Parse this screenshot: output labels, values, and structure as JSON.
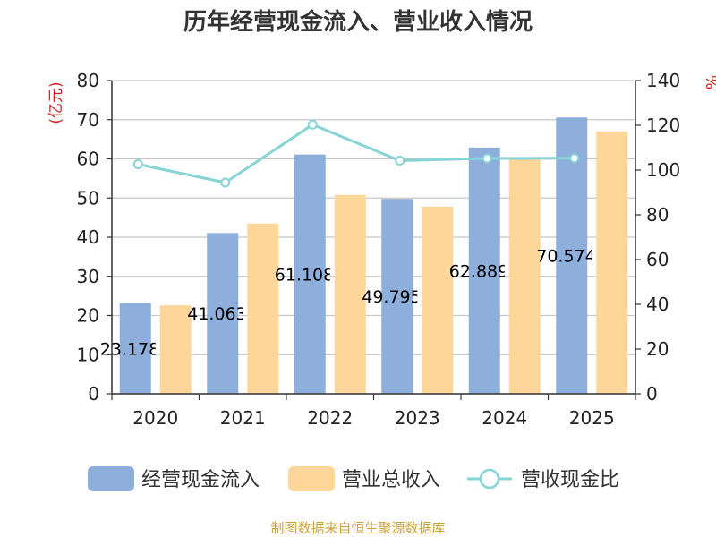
{
  "chart_data": {
    "type": "bar",
    "title": "历年经营现金流入、营业收入情况",
    "categories": [
      "2020",
      "2021",
      "2022",
      "2023",
      "2024",
      "2025"
    ],
    "series": [
      {
        "name": "经营现金流入",
        "axis": "left",
        "type": "bar",
        "color": "#8eaedb",
        "values": [
          23.178,
          41.063,
          61.108,
          49.795,
          62.889,
          70.574
        ],
        "labels": [
          "23.178",
          "41.063",
          "61.108",
          "49.795",
          "62.889",
          "70.574"
        ]
      },
      {
        "name": "营业总收入",
        "axis": "left",
        "type": "bar",
        "color": "#fdd799",
        "values": [
          22.6,
          43.5,
          50.8,
          47.8,
          59.8,
          67.0
        ]
      },
      {
        "name": "营收现金比",
        "axis": "right",
        "type": "line",
        "color": "#86d4d6",
        "values": [
          102.6,
          94.4,
          120.3,
          104.2,
          105.2,
          105.3
        ]
      }
    ],
    "ylabel_left": "(亿元)",
    "ylabel_right": "%",
    "ylim_left": [
      0,
      80
    ],
    "yticks_left": [
      "0",
      "10",
      "20",
      "30",
      "40",
      "50",
      "60",
      "70",
      "80"
    ],
    "ylim_right": [
      0,
      140
    ],
    "yticks_right": [
      "0",
      "20",
      "40",
      "60",
      "80",
      "100",
      "120",
      "140"
    ],
    "grid": true,
    "legend_position": "bottom"
  },
  "credit": "制图数据来自恒生聚源数据库"
}
